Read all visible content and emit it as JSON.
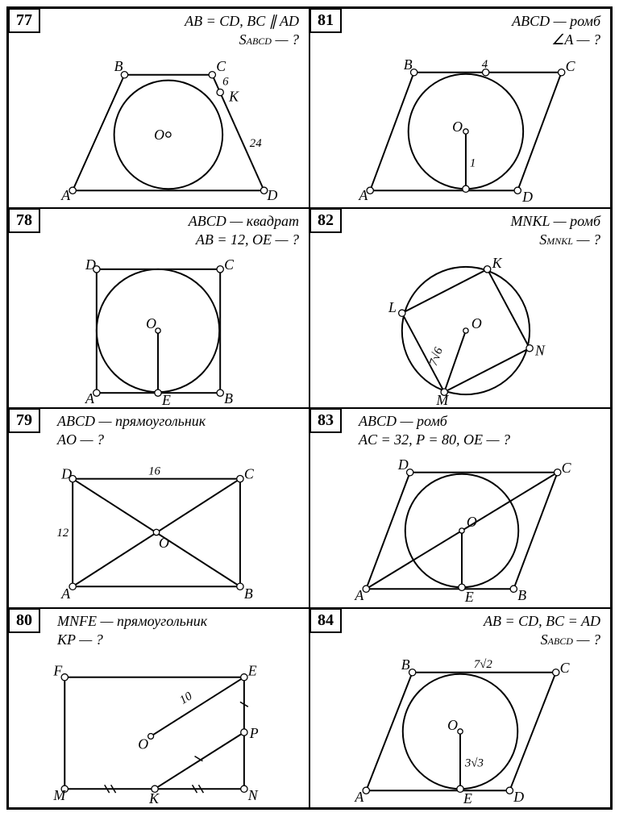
{
  "problems": [
    {
      "num": "77",
      "given_html": "<i>AB = CD</i>, <i>BC</i> ∥ <i>AD</i><br><i>S<span class='sub'>ABCD</span></i> — ?",
      "labels": {
        "A": "A",
        "B": "B",
        "C": "C",
        "D": "D",
        "O": "O",
        "K": "K",
        "v1": "6",
        "v2": "24"
      }
    },
    {
      "num": "81",
      "given_html": "<i>ABCD</i> — ромб<br>∠<i>A</i> — ?",
      "labels": {
        "A": "A",
        "B": "B",
        "C": "C",
        "D": "D",
        "O": "O",
        "v1": "4",
        "v2": "1"
      }
    },
    {
      "num": "78",
      "given_html": "<i>ABCD</i> — квадрат<br><i>AB</i> = 12, <i>OE</i> — ?",
      "labels": {
        "A": "A",
        "B": "B",
        "C": "C",
        "D": "D",
        "O": "O",
        "E": "E"
      }
    },
    {
      "num": "82",
      "given_html": "<i>MNKL</i> — ромб<br><i>S<span class='sub'>MNKL</span></i> — ?",
      "labels": {
        "M": "M",
        "N": "N",
        "K": "K",
        "L": "L",
        "O": "O",
        "v1": "7√6"
      }
    },
    {
      "num": "79",
      "given_html": "<i>ABCD</i> — прямоугольник<br><i>AO</i> — ?",
      "labels": {
        "A": "A",
        "B": "B",
        "C": "C",
        "D": "D",
        "O": "O",
        "v1": "16",
        "v2": "12"
      }
    },
    {
      "num": "83",
      "given_html": "<i>ABCD</i> — ромб<br><i>AC</i> = 32, <i>P</i> = 80, <i>OE</i> — ?",
      "labels": {
        "A": "A",
        "B": "B",
        "C": "C",
        "D": "D",
        "O": "O",
        "E": "E"
      }
    },
    {
      "num": "80",
      "given_html": "<i>MNFE</i> — прямоугольник<br><i>KP</i> — ?",
      "labels": {
        "M": "M",
        "N": "N",
        "F": "F",
        "E": "E",
        "O": "O",
        "K": "K",
        "P": "P",
        "v1": "10"
      }
    },
    {
      "num": "84",
      "given_html": "<i>AB = CD</i>, <i>BC = AD</i><br><i>S<span class='sub'>ABCD</span></i> — ?",
      "labels": {
        "A": "A",
        "B": "B",
        "C": "C",
        "D": "D",
        "O": "O",
        "E": "E",
        "v1": "7√2",
        "v2": "3√3"
      }
    }
  ],
  "stroke": "#000000",
  "fill": "#ffffff",
  "line_w": 2,
  "thin_w": 1.3,
  "vertex_r": 4.2
}
